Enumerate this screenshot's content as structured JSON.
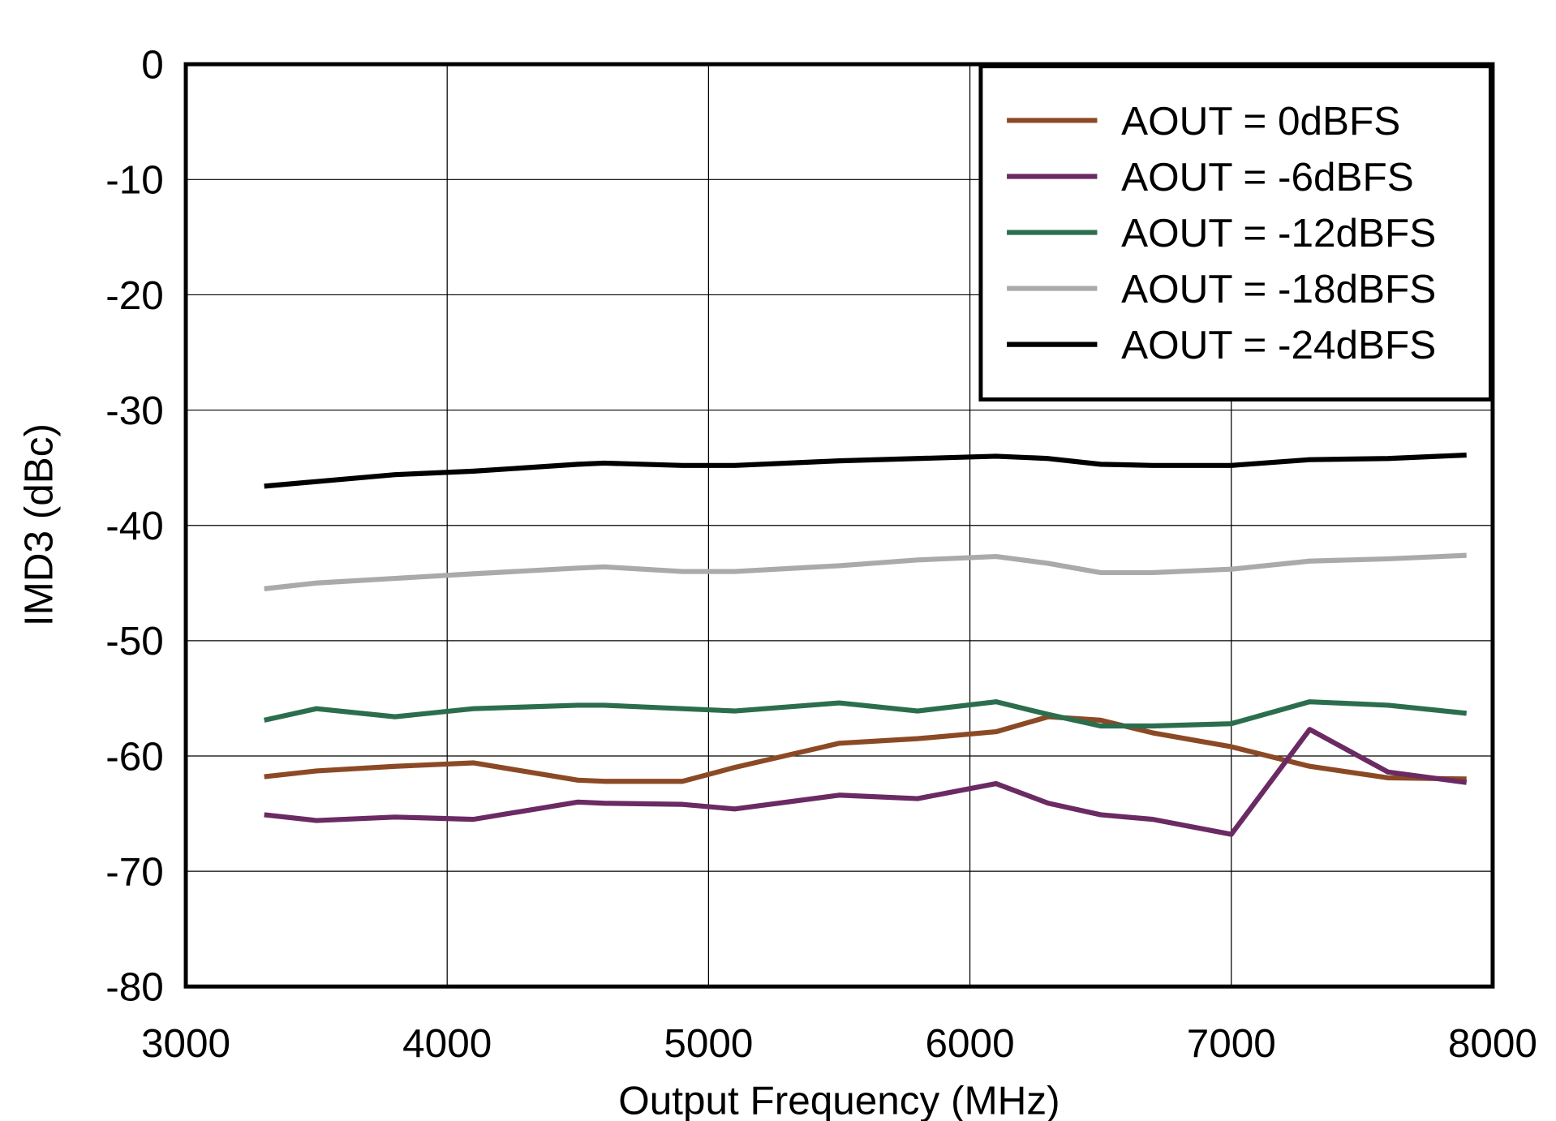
{
  "chart_data": {
    "type": "line",
    "xlabel": "Output Frequency (MHz)",
    "ylabel": "IMD3 (dBc)",
    "x": [
      3300,
      3500,
      3800,
      4100,
      4500,
      4600,
      4900,
      5100,
      5500,
      5800,
      6100,
      6300,
      6500,
      6700,
      7000,
      7300,
      7600,
      7900
    ],
    "series": [
      {
        "name": "AOUT = 0dBFS",
        "color": "#8b4a25",
        "values": [
          -61.8,
          -61.3,
          -60.9,
          -60.6,
          -62.1,
          -62.2,
          -62.2,
          -61.0,
          -58.9,
          -58.5,
          -57.9,
          -56.6,
          -56.9,
          -58.0,
          -59.2,
          -60.9,
          -61.9,
          -62.0
        ]
      },
      {
        "name": "AOUT = -6dBFS",
        "color": "#6b2a63",
        "values": [
          -65.1,
          -65.6,
          -65.3,
          -65.5,
          -64.0,
          -64.1,
          -64.2,
          -64.6,
          -63.4,
          -63.7,
          -62.4,
          -64.1,
          -65.1,
          -65.5,
          -66.8,
          -57.7,
          -61.4,
          -62.3
        ]
      },
      {
        "name": "AOUT = -12dBFS",
        "color": "#2b6e4e",
        "values": [
          -56.9,
          -55.9,
          -56.6,
          -55.9,
          -55.6,
          -55.6,
          -55.9,
          -56.1,
          -55.4,
          -56.1,
          -55.3,
          -56.4,
          -57.4,
          -57.4,
          -57.2,
          -55.3,
          -55.6,
          -56.3
        ]
      },
      {
        "name": "AOUT = -18dBFS",
        "color": "#aaaaaa",
        "values": [
          -45.5,
          -45.0,
          -44.6,
          -44.2,
          -43.7,
          -43.6,
          -44.0,
          -44.0,
          -43.5,
          -43.0,
          -42.7,
          -43.3,
          -44.1,
          -44.1,
          -43.8,
          -43.1,
          -42.9,
          -42.6
        ]
      },
      {
        "name": "AOUT = -24dBFS",
        "color": "#000000",
        "values": [
          -36.6,
          -36.2,
          -35.6,
          -35.3,
          -34.7,
          -34.6,
          -34.8,
          -34.8,
          -34.4,
          -34.2,
          -34.0,
          -34.2,
          -34.7,
          -34.8,
          -34.8,
          -34.3,
          -34.2,
          -33.9
        ]
      }
    ],
    "xlim": [
      3000,
      8000
    ],
    "xticks": [
      3000,
      4000,
      5000,
      6000,
      7000,
      8000
    ],
    "ylim": [
      -80,
      0
    ],
    "yticks": [
      0,
      -10,
      -20,
      -30,
      -40,
      -50,
      -60,
      -70,
      -80
    ],
    "grid": true,
    "legend": "upper-right"
  }
}
